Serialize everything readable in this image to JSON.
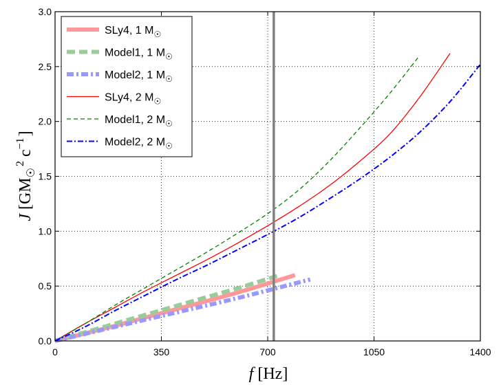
{
  "chart_data": {
    "type": "line",
    "xlabel_symbol": "f",
    "xlabel_unit": "[Hz]",
    "ylabel_symbol": "J",
    "ylabel_unit": "[GM",
    "ylabel_sub": "☉",
    "ylabel_sup1": "2",
    "ylabel_c": "c",
    "ylabel_sup2": "−1",
    "ylabel_close": "]",
    "xlim": [
      0,
      1400
    ],
    "ylim": [
      0,
      3.0
    ],
    "xticks": [
      0,
      350,
      700,
      1050,
      1400
    ],
    "xtick_labels": [
      "0",
      "350",
      "700",
      "1050",
      "1400"
    ],
    "yticks": [
      0,
      0.5,
      1.0,
      1.5,
      2.0,
      2.5,
      3.0
    ],
    "ytick_labels": [
      "0.0",
      "0.5",
      "1.0",
      "1.5",
      "2.0",
      "2.5",
      "3.0"
    ],
    "grid": true,
    "vline_x": 720,
    "legend_position": "top-left",
    "series": [
      {
        "name": "SLy4, 1 M",
        "sub": "☉",
        "color": "#ff9999",
        "dash": "solid",
        "width": 6,
        "x": [
          0,
          200,
          400,
          600,
          790
        ],
        "y": [
          0,
          0.14,
          0.29,
          0.44,
          0.6
        ]
      },
      {
        "name": "Model1, 1 M",
        "sub": "☉",
        "color": "#99cc99",
        "dash": "12 6",
        "width": 6,
        "x": [
          0,
          200,
          400,
          600,
          740
        ],
        "y": [
          0,
          0.16,
          0.32,
          0.48,
          0.6
        ]
      },
      {
        "name": "Model2, 1 M",
        "sub": "☉",
        "color": "#9999ff",
        "dash": "10 4 3 4",
        "width": 6,
        "x": [
          0,
          200,
          400,
          600,
          840
        ],
        "y": [
          0,
          0.13,
          0.26,
          0.39,
          0.56
        ]
      },
      {
        "name": "SLy4, 2 M",
        "sub": "☉",
        "color": "#ff0000",
        "dash": "solid",
        "width": 1.3,
        "x": [
          0,
          100,
          200,
          300,
          400,
          500,
          600,
          700,
          800,
          900,
          1000,
          1100,
          1200,
          1300
        ],
        "y": [
          0,
          0.16,
          0.31,
          0.46,
          0.6,
          0.74,
          0.89,
          1.05,
          1.22,
          1.41,
          1.63,
          1.88,
          2.22,
          2.62
        ]
      },
      {
        "name": "Model1, 2 M",
        "sub": "☉",
        "color": "#008000",
        "dash": "6 4",
        "width": 1.3,
        "x": [
          0,
          100,
          200,
          300,
          400,
          500,
          600,
          700,
          800,
          900,
          1000,
          1100,
          1200
        ],
        "y": [
          0,
          0.16,
          0.33,
          0.49,
          0.65,
          0.81,
          0.98,
          1.16,
          1.37,
          1.63,
          1.93,
          2.25,
          2.6
        ]
      },
      {
        "name": "Model2, 2 M",
        "sub": "☉",
        "color": "#0000ff",
        "dash": "8 3 2 3",
        "width": 2,
        "x": [
          0,
          100,
          200,
          300,
          400,
          500,
          600,
          700,
          800,
          900,
          1000,
          1100,
          1200,
          1300,
          1400
        ],
        "y": [
          0,
          0.13,
          0.28,
          0.42,
          0.56,
          0.69,
          0.83,
          0.97,
          1.12,
          1.29,
          1.47,
          1.67,
          1.9,
          2.18,
          2.52
        ]
      }
    ]
  }
}
